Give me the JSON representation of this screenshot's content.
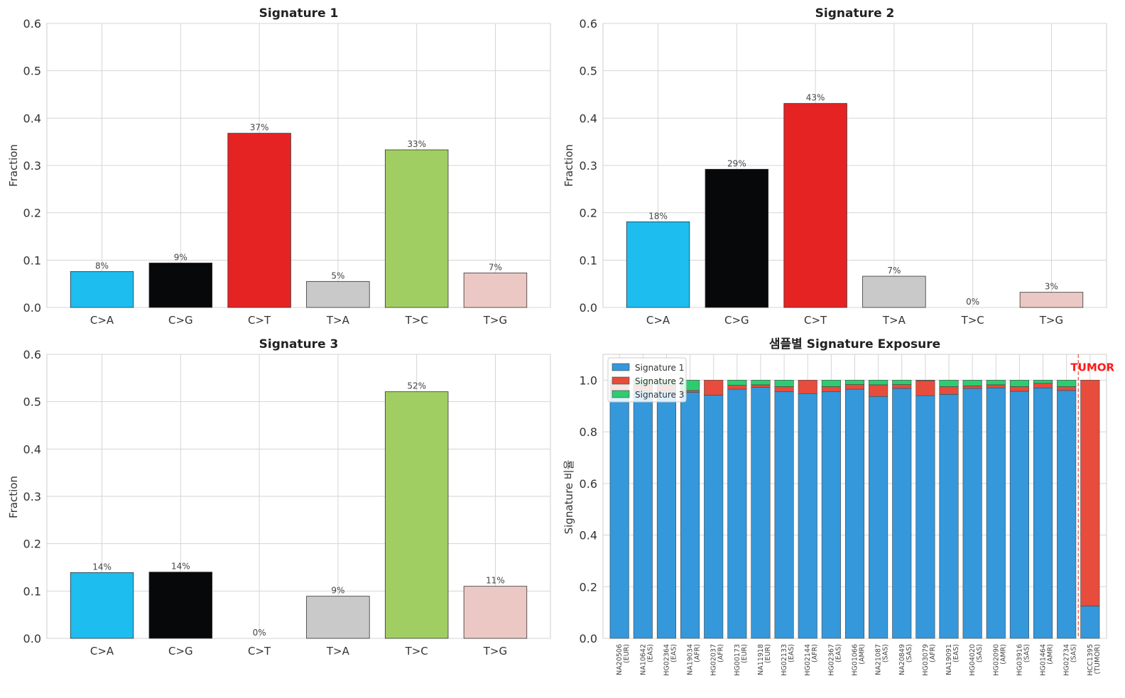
{
  "chart_data": [
    {
      "type": "bar",
      "title": "Signature 1",
      "ylabel": "Fraction",
      "categories": [
        "C>A",
        "C>G",
        "C>T",
        "T>A",
        "T>C",
        "T>G"
      ],
      "values": [
        0.076,
        0.094,
        0.368,
        0.055,
        0.333,
        0.073
      ],
      "labels": [
        "8%",
        "9%",
        "37%",
        "5%",
        "33%",
        "7%"
      ],
      "colors": [
        "#1ebdef",
        "#06080a",
        "#e52323",
        "#c9c9c9",
        "#a1ce62",
        "#ecc8c4"
      ],
      "ylim": [
        0,
        0.6
      ],
      "yticks": [
        "0.0",
        "0.1",
        "0.2",
        "0.3",
        "0.4",
        "0.5",
        "0.6"
      ],
      "grid": true
    },
    {
      "type": "bar",
      "title": "Signature 2",
      "ylabel": "Fraction",
      "categories": [
        "C>A",
        "C>G",
        "C>T",
        "T>A",
        "T>C",
        "T>G"
      ],
      "values": [
        0.181,
        0.292,
        0.431,
        0.066,
        0.0,
        0.032
      ],
      "labels": [
        "18%",
        "29%",
        "43%",
        "7%",
        "0%",
        "3%"
      ],
      "colors": [
        "#1ebdef",
        "#06080a",
        "#e52323",
        "#c9c9c9",
        "#a1ce62",
        "#ecc8c4"
      ],
      "ylim": [
        0,
        0.6
      ],
      "yticks": [
        "0.0",
        "0.1",
        "0.2",
        "0.3",
        "0.4",
        "0.5",
        "0.6"
      ],
      "grid": true
    },
    {
      "type": "bar",
      "title": "Signature 3",
      "ylabel": "Fraction",
      "categories": [
        "C>A",
        "C>G",
        "C>T",
        "T>A",
        "T>C",
        "T>G"
      ],
      "values": [
        0.139,
        0.14,
        0.0,
        0.089,
        0.521,
        0.11
      ],
      "labels": [
        "14%",
        "14%",
        "0%",
        "9%",
        "52%",
        "11%"
      ],
      "colors": [
        "#1ebdef",
        "#06080a",
        "#e52323",
        "#c9c9c9",
        "#a1ce62",
        "#ecc8c4"
      ],
      "ylim": [
        0,
        0.6
      ],
      "yticks": [
        "0.0",
        "0.1",
        "0.2",
        "0.3",
        "0.4",
        "0.5",
        "0.6"
      ],
      "grid": true
    },
    {
      "type": "bar",
      "stacked": true,
      "title": "샘플별 Signature Exposure",
      "ylabel": "Signature 비율",
      "categories": [
        [
          "NA20506",
          "(EUR)"
        ],
        [
          "NA10642",
          "(EAS)"
        ],
        [
          "HG02364",
          "(EAS)"
        ],
        [
          "NA19034",
          "(AFR)"
        ],
        [
          "HG02037",
          "(AFR)"
        ],
        [
          "HG00173",
          "(EUR)"
        ],
        [
          "NA11918",
          "(EUR)"
        ],
        [
          "HG02133",
          "(EAS)"
        ],
        [
          "HG02144",
          "(AFR)"
        ],
        [
          "HG02367",
          "(EAS)"
        ],
        [
          "HG01066",
          "(AMR)"
        ],
        [
          "NA21087",
          "(SAS)"
        ],
        [
          "NA20849",
          "(SAS)"
        ],
        [
          "HG03079",
          "(AFR)"
        ],
        [
          "NA19091",
          "(EAS)"
        ],
        [
          "HG04020",
          "(SAS)"
        ],
        [
          "HG02090",
          "(AMR)"
        ],
        [
          "HG03916",
          "(SAS)"
        ],
        [
          "HG01464",
          "(AMR)"
        ],
        [
          "HG02734",
          "(SAS)"
        ],
        [
          "HCC1395",
          "(TUMOR)"
        ]
      ],
      "series": [
        {
          "name": "Signature 1",
          "color": "#3498db",
          "values": [
            0.96,
            0.96,
            0.96,
            0.953,
            0.942,
            0.965,
            0.972,
            0.955,
            0.948,
            0.955,
            0.965,
            0.937,
            0.968,
            0.94,
            0.945,
            0.968,
            0.97,
            0.957,
            0.97,
            0.96,
            0.125
          ]
        },
        {
          "name": "Signature 2",
          "color": "#e74c3c",
          "values": [
            0.02,
            0.02,
            0.02,
            0.007,
            0.058,
            0.015,
            0.01,
            0.02,
            0.052,
            0.02,
            0.018,
            0.045,
            0.015,
            0.058,
            0.03,
            0.01,
            0.012,
            0.018,
            0.018,
            0.015,
            0.875
          ]
        },
        {
          "name": "Signature 3",
          "color": "#2ecc71",
          "values": [
            0.02,
            0.02,
            0.02,
            0.04,
            0.0,
            0.02,
            0.018,
            0.025,
            0.0,
            0.025,
            0.017,
            0.018,
            0.017,
            0.002,
            0.025,
            0.022,
            0.018,
            0.025,
            0.012,
            0.025,
            0.0
          ]
        }
      ],
      "ylim": [
        0,
        1.1
      ],
      "yticks": [
        "0.0",
        "0.2",
        "0.4",
        "0.6",
        "0.8",
        "1.0"
      ],
      "legend_position": "top-left",
      "annotation": "TUMOR",
      "grid": true
    }
  ]
}
